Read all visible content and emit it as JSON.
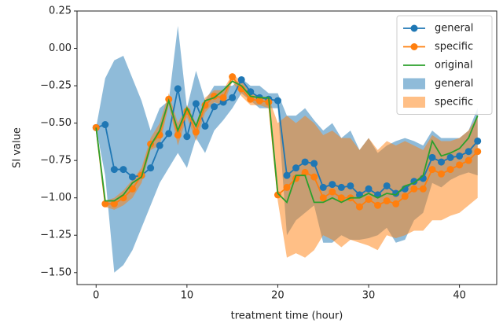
{
  "chart_data": {
    "type": "line",
    "xlabel": "treatment time (hour)",
    "ylabel": "SI value",
    "x": [
      0,
      1,
      2,
      3,
      4,
      5,
      6,
      7,
      8,
      9,
      10,
      11,
      12,
      13,
      14,
      15,
      16,
      17,
      18,
      19,
      20,
      21,
      22,
      23,
      24,
      25,
      26,
      27,
      28,
      29,
      30,
      31,
      32,
      33,
      34,
      35,
      36,
      37,
      38,
      39,
      40,
      41,
      42
    ],
    "series": [
      {
        "name": "general",
        "color": "#1f77b4",
        "marker": true,
        "values": [
          -0.53,
          -0.51,
          -0.81,
          -0.81,
          -0.86,
          -0.85,
          -0.8,
          -0.65,
          -0.57,
          -0.27,
          -0.59,
          -0.37,
          -0.52,
          -0.39,
          -0.36,
          -0.33,
          -0.21,
          -0.29,
          -0.33,
          -0.34,
          -0.35,
          -0.85,
          -0.8,
          -0.76,
          -0.77,
          -0.93,
          -0.91,
          -0.93,
          -0.92,
          -0.98,
          -0.94,
          -0.98,
          -0.92,
          -0.97,
          -0.94,
          -0.89,
          -0.87,
          -0.73,
          -0.76,
          -0.73,
          -0.72,
          -0.69,
          -0.62
        ]
      },
      {
        "name": "specific",
        "color": "#ff7f0e",
        "marker": true,
        "values": [
          -0.53,
          -1.04,
          -1.04,
          -1.0,
          -0.94,
          -0.85,
          -0.64,
          -0.58,
          -0.34,
          -0.58,
          -0.42,
          -0.56,
          -0.38,
          -0.32,
          -0.33,
          -0.19,
          -0.27,
          -0.34,
          -0.35,
          -0.36,
          -0.98,
          -0.93,
          -0.87,
          -0.83,
          -0.86,
          -1.0,
          -0.96,
          -1.0,
          -1.0,
          -1.06,
          -1.01,
          -1.05,
          -1.02,
          -1.04,
          -0.99,
          -0.94,
          -0.94,
          -0.81,
          -0.84,
          -0.81,
          -0.78,
          -0.75,
          -0.69
        ]
      },
      {
        "name": "original",
        "color": "#2ca02c",
        "marker": false,
        "values": [
          -0.53,
          -1.02,
          -1.02,
          -0.98,
          -0.9,
          -0.86,
          -0.65,
          -0.55,
          -0.35,
          -0.55,
          -0.4,
          -0.52,
          -0.35,
          -0.33,
          -0.28,
          -0.22,
          -0.25,
          -0.32,
          -0.33,
          -0.33,
          -0.97,
          -1.03,
          -0.85,
          -0.85,
          -1.03,
          -1.03,
          -1.0,
          -1.03,
          -1.0,
          -1.0,
          -0.97,
          -1.0,
          -0.97,
          -0.98,
          -0.92,
          -0.9,
          -0.85,
          -0.62,
          -0.72,
          -0.7,
          -0.67,
          -0.6,
          -0.45
        ]
      }
    ],
    "bands": [
      {
        "name": "general",
        "color": "#1f77b4",
        "upper": [
          -0.53,
          -0.2,
          -0.08,
          -0.05,
          -0.2,
          -0.35,
          -0.55,
          -0.4,
          -0.35,
          0.15,
          -0.4,
          -0.15,
          -0.35,
          -0.25,
          -0.25,
          -0.25,
          -0.2,
          -0.25,
          -0.25,
          -0.3,
          -0.3,
          -0.45,
          -0.45,
          -0.4,
          -0.48,
          -0.55,
          -0.5,
          -0.6,
          -0.55,
          -0.68,
          -0.6,
          -0.7,
          -0.65,
          -0.62,
          -0.6,
          -0.62,
          -0.65,
          -0.55,
          -0.6,
          -0.6,
          -0.6,
          -0.55,
          -0.4
        ],
        "lower": [
          -0.53,
          -0.85,
          -1.5,
          -1.45,
          -1.35,
          -1.2,
          -1.05,
          -0.9,
          -0.8,
          -0.7,
          -0.8,
          -0.6,
          -0.7,
          -0.55,
          -0.48,
          -0.4,
          -0.3,
          -0.35,
          -0.4,
          -0.4,
          -0.4,
          -1.25,
          -1.15,
          -1.1,
          -1.05,
          -1.3,
          -1.3,
          -1.25,
          -1.28,
          -1.28,
          -1.27,
          -1.25,
          -1.2,
          -1.3,
          -1.28,
          -1.15,
          -1.1,
          -0.9,
          -0.93,
          -0.88,
          -0.85,
          -0.83,
          -0.85
        ]
      },
      {
        "name": "specific",
        "color": "#ff7f0e",
        "upper": [
          -0.53,
          -1.02,
          -1.0,
          -0.95,
          -0.88,
          -0.8,
          -0.6,
          -0.5,
          -0.3,
          -0.5,
          -0.38,
          -0.5,
          -0.33,
          -0.28,
          -0.28,
          -0.17,
          -0.22,
          -0.3,
          -0.32,
          -0.33,
          -0.5,
          -0.45,
          -0.5,
          -0.45,
          -0.5,
          -0.58,
          -0.55,
          -0.6,
          -0.6,
          -0.68,
          -0.6,
          -0.68,
          -0.62,
          -0.65,
          -0.62,
          -0.65,
          -0.68,
          -0.58,
          -0.62,
          -0.62,
          -0.6,
          -0.55,
          -0.45
        ],
        "lower": [
          -0.53,
          -1.06,
          -1.08,
          -1.05,
          -1.0,
          -0.9,
          -0.68,
          -0.65,
          -0.38,
          -0.65,
          -0.46,
          -0.62,
          -0.43,
          -0.36,
          -0.38,
          -0.22,
          -0.32,
          -0.38,
          -0.38,
          -0.4,
          -1.02,
          -1.4,
          -1.37,
          -1.4,
          -1.35,
          -1.25,
          -1.28,
          -1.33,
          -1.28,
          -1.3,
          -1.32,
          -1.35,
          -1.25,
          -1.27,
          -1.25,
          -1.22,
          -1.22,
          -1.15,
          -1.15,
          -1.12,
          -1.1,
          -1.05,
          -1.0
        ]
      }
    ],
    "band_opacity": 0.5,
    "xlim": [
      -2.1,
      44.1
    ],
    "xticks": [
      0,
      10,
      20,
      30,
      40
    ],
    "ylim": [
      -1.58,
      0.25
    ],
    "yticks": [
      0.25,
      {
        "value": 0,
        "label": "0.00"
      },
      {
        "value": -0.25,
        "label": "−0.25"
      },
      {
        "value": -0.5,
        "label": "−0.50"
      },
      {
        "value": -0.75,
        "label": "−0.75"
      },
      {
        "value": -1,
        "label": "−1.00"
      },
      {
        "value": -1.25,
        "label": "−1.25"
      },
      {
        "value": -1.5,
        "label": "−1.50"
      }
    ],
    "legend": "upper right",
    "grid": false
  }
}
